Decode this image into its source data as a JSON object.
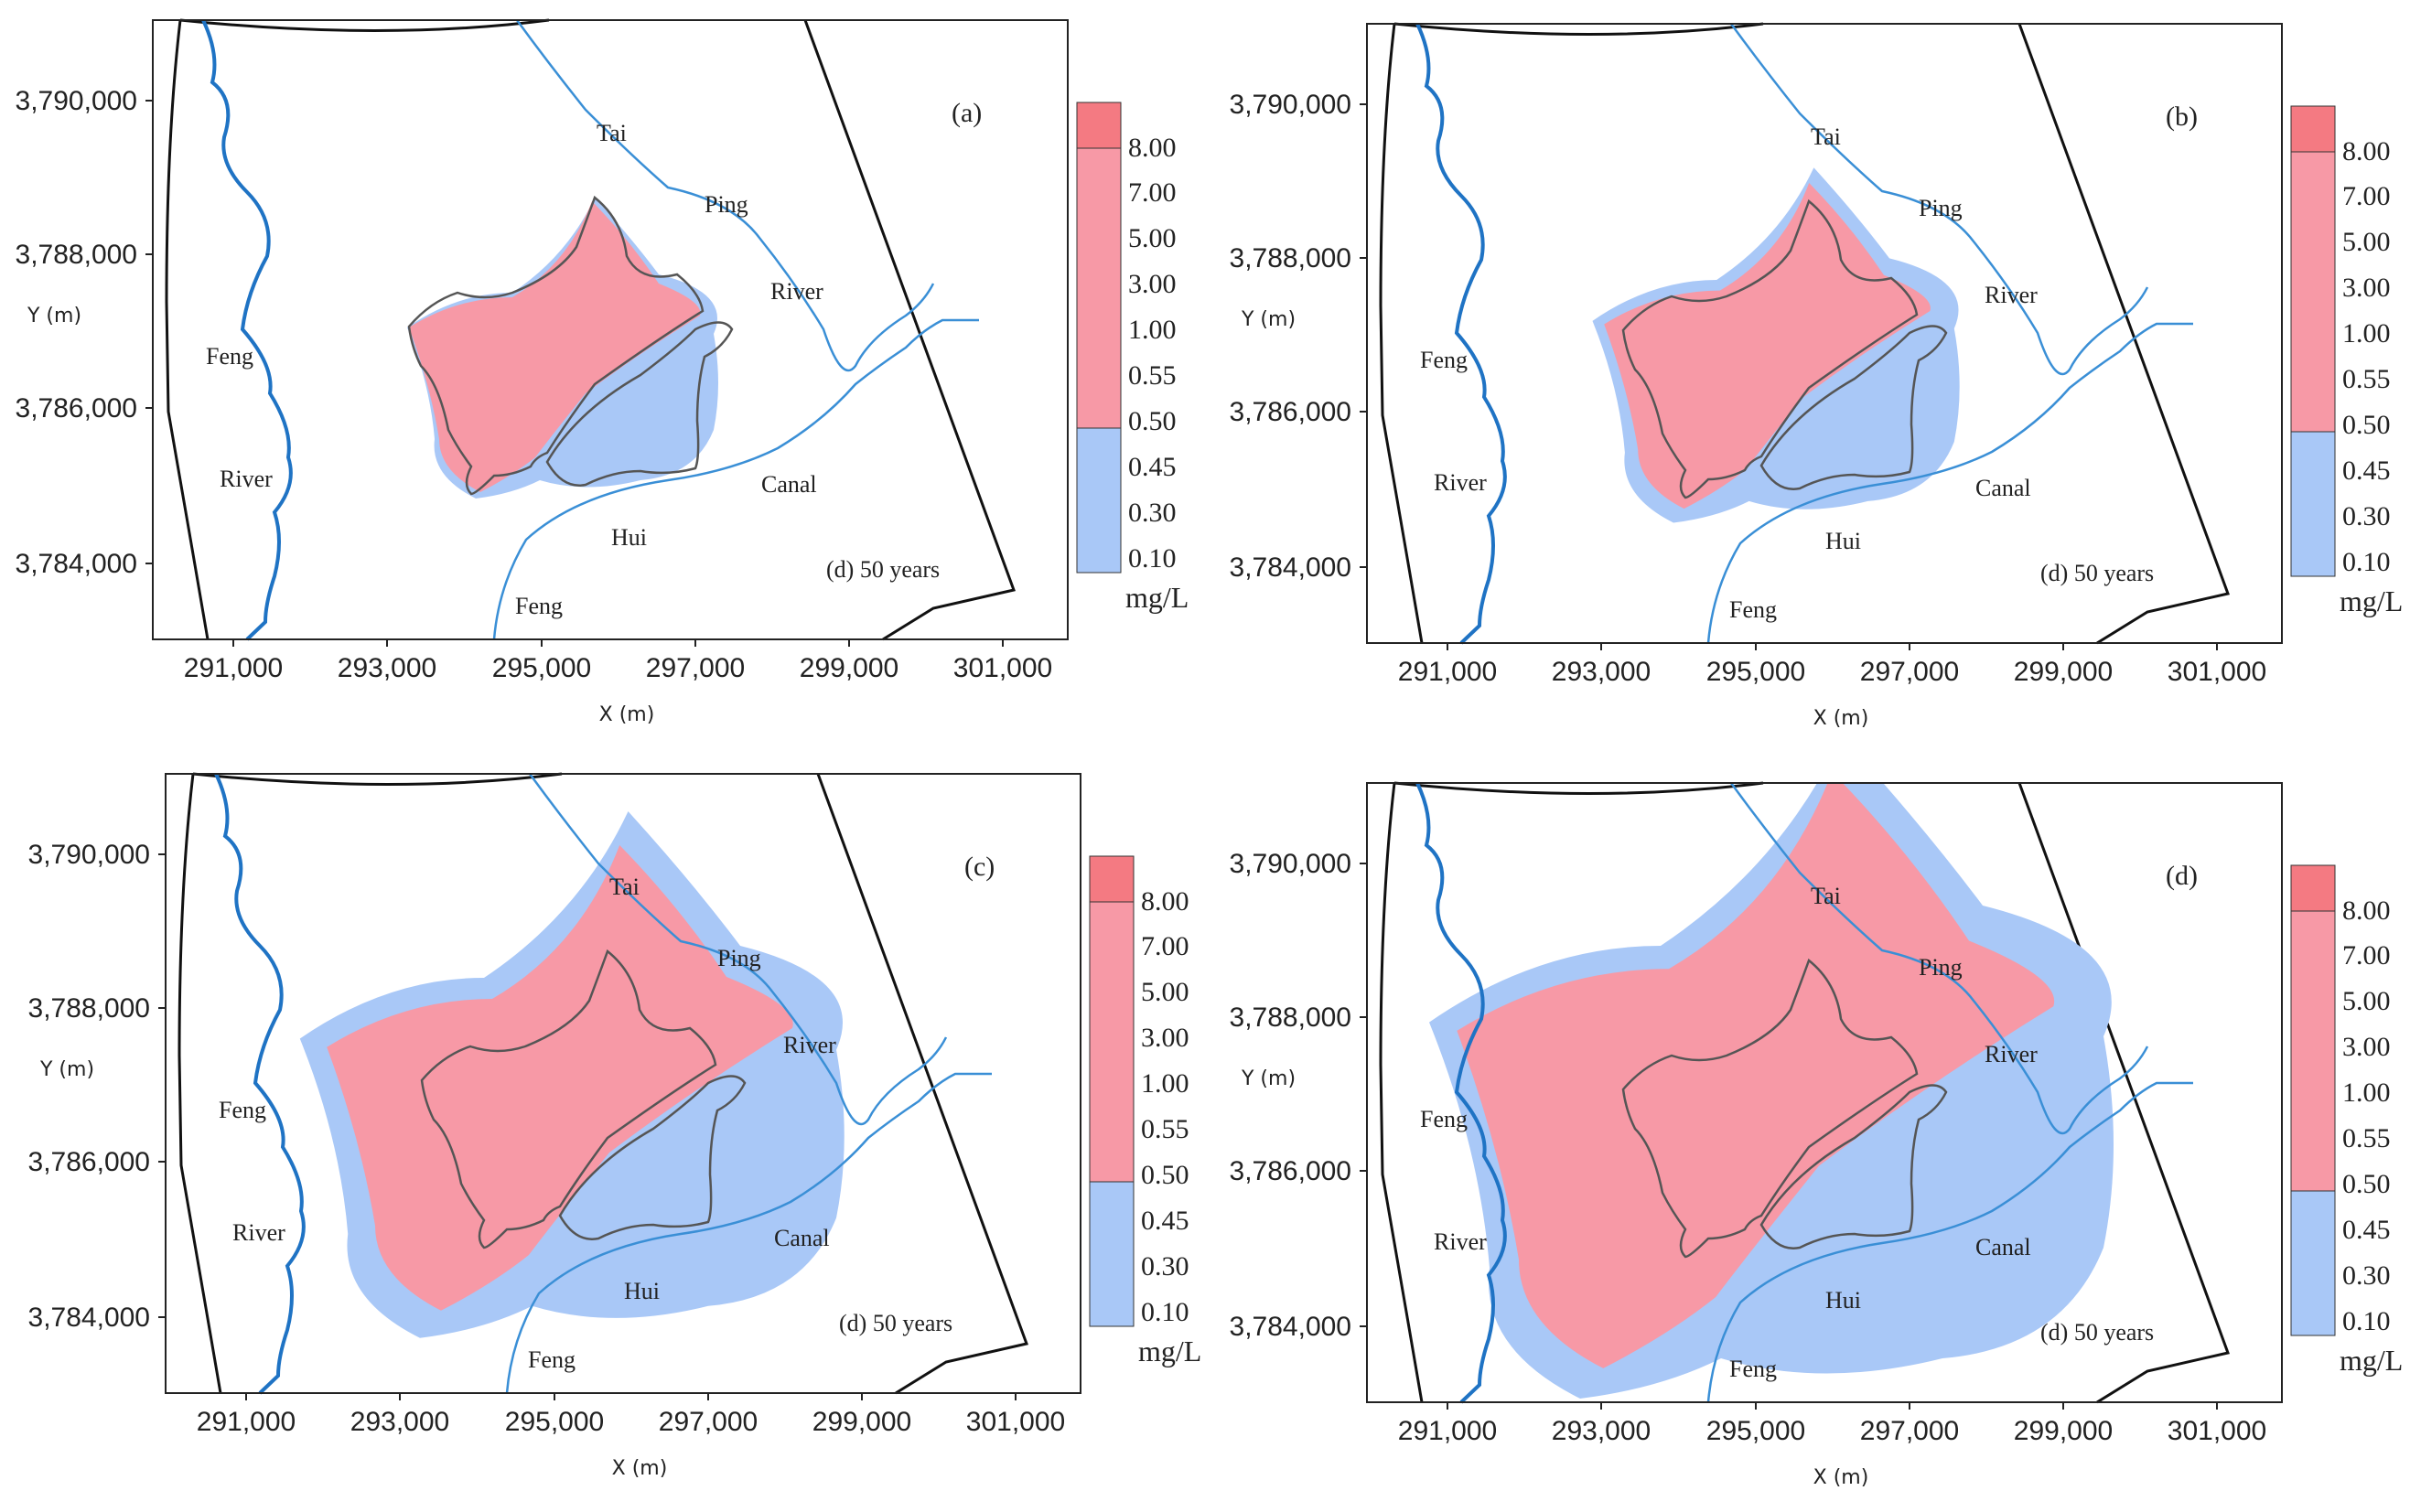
{
  "figure": {
    "panels": [
      {
        "id": "a",
        "panel_label": "(a)",
        "note": "(d) 50 years",
        "ylabel": "Y (m)",
        "xlabel": "X (m)",
        "x_ticks": [
          "291,000",
          "293,000",
          "295,000",
          "297,000",
          "299,000",
          "301,000"
        ],
        "y_ticks": [
          "3,790,000",
          "3,788,000",
          "3,786,000",
          "3,784,000"
        ],
        "rivers": {
          "tai": "Tai",
          "ping": "Ping",
          "river_r": "River",
          "canal": "Canal",
          "hui": "Hui",
          "feng_s": "Feng",
          "feng_w": "Feng",
          "river_w": "River"
        },
        "colorbar": {
          "labels": [
            "8.00",
            "7.00",
            "5.00",
            "3.00",
            "1.00",
            "0.55",
            "0.50",
            "0.45",
            "0.30",
            "0.10"
          ],
          "unit": "mg/L"
        },
        "plume_extent": 0
      },
      {
        "id": "b",
        "panel_label": "(b)",
        "note": "(d) 50 years",
        "ylabel": "Y (m)",
        "xlabel": "X (m)",
        "x_ticks": [
          "291,000",
          "293,000",
          "295,000",
          "297,000",
          "299,000",
          "301,000"
        ],
        "y_ticks": [
          "3,790,000",
          "3,788,000",
          "3,786,000",
          "3,784,000"
        ],
        "rivers": {
          "tai": "Tai",
          "ping": "Ping",
          "river_r": "River",
          "canal": "Canal",
          "hui": "Hui",
          "feng_s": "Feng",
          "feng_w": "Feng",
          "river_w": "River"
        },
        "colorbar": {
          "labels": [
            "8.00",
            "7.00",
            "5.00",
            "3.00",
            "1.00",
            "0.55",
            "0.50",
            "0.45",
            "0.30",
            "0.10"
          ],
          "unit": "mg/L"
        },
        "plume_extent": 1
      },
      {
        "id": "c",
        "panel_label": "(c)",
        "note": "(d) 50 years",
        "ylabel": "Y (m)",
        "xlabel": "X (m)",
        "x_ticks": [
          "291,000",
          "293,000",
          "295,000",
          "297,000",
          "299,000",
          "301,000"
        ],
        "y_ticks": [
          "3,790,000",
          "3,788,000",
          "3,786,000",
          "3,784,000"
        ],
        "rivers": {
          "tai": "Tai",
          "ping": "Ping",
          "river_r": "River",
          "canal": "Canal",
          "hui": "Hui",
          "feng_s": "Feng",
          "feng_w": "Feng",
          "river_w": "River"
        },
        "colorbar": {
          "labels": [
            "8.00",
            "7.00",
            "5.00",
            "3.00",
            "1.00",
            "0.55",
            "0.50",
            "0.45",
            "0.30",
            "0.10"
          ],
          "unit": "mg/L"
        },
        "plume_extent": 2
      },
      {
        "id": "d",
        "panel_label": "(d)",
        "note": "(d) 50 years",
        "ylabel": "Y (m)",
        "xlabel": "X (m)",
        "x_ticks": [
          "291,000",
          "293,000",
          "295,000",
          "297,000",
          "299,000",
          "301,000"
        ],
        "y_ticks": [
          "3,790,000",
          "3,788,000",
          "3,786,000",
          "3,784,000"
        ],
        "rivers": {
          "tai": "Tai",
          "ping": "Ping",
          "river_r": "River",
          "canal": "Canal",
          "hui": "Hui",
          "feng_s": "Feng",
          "feng_w": "Feng",
          "river_w": "River"
        },
        "colorbar": {
          "labels": [
            "8.00",
            "7.00",
            "5.00",
            "3.00",
            "1.00",
            "0.55",
            "0.50",
            "0.45",
            "0.30",
            "0.10"
          ],
          "unit": "mg/L"
        },
        "plume_extent": 3
      }
    ],
    "colors": {
      "high": "#f799a6",
      "high_top": "#f47a82",
      "low": "#a9c8f7",
      "river": "#3a8fd6",
      "boundary": "#111111"
    }
  }
}
